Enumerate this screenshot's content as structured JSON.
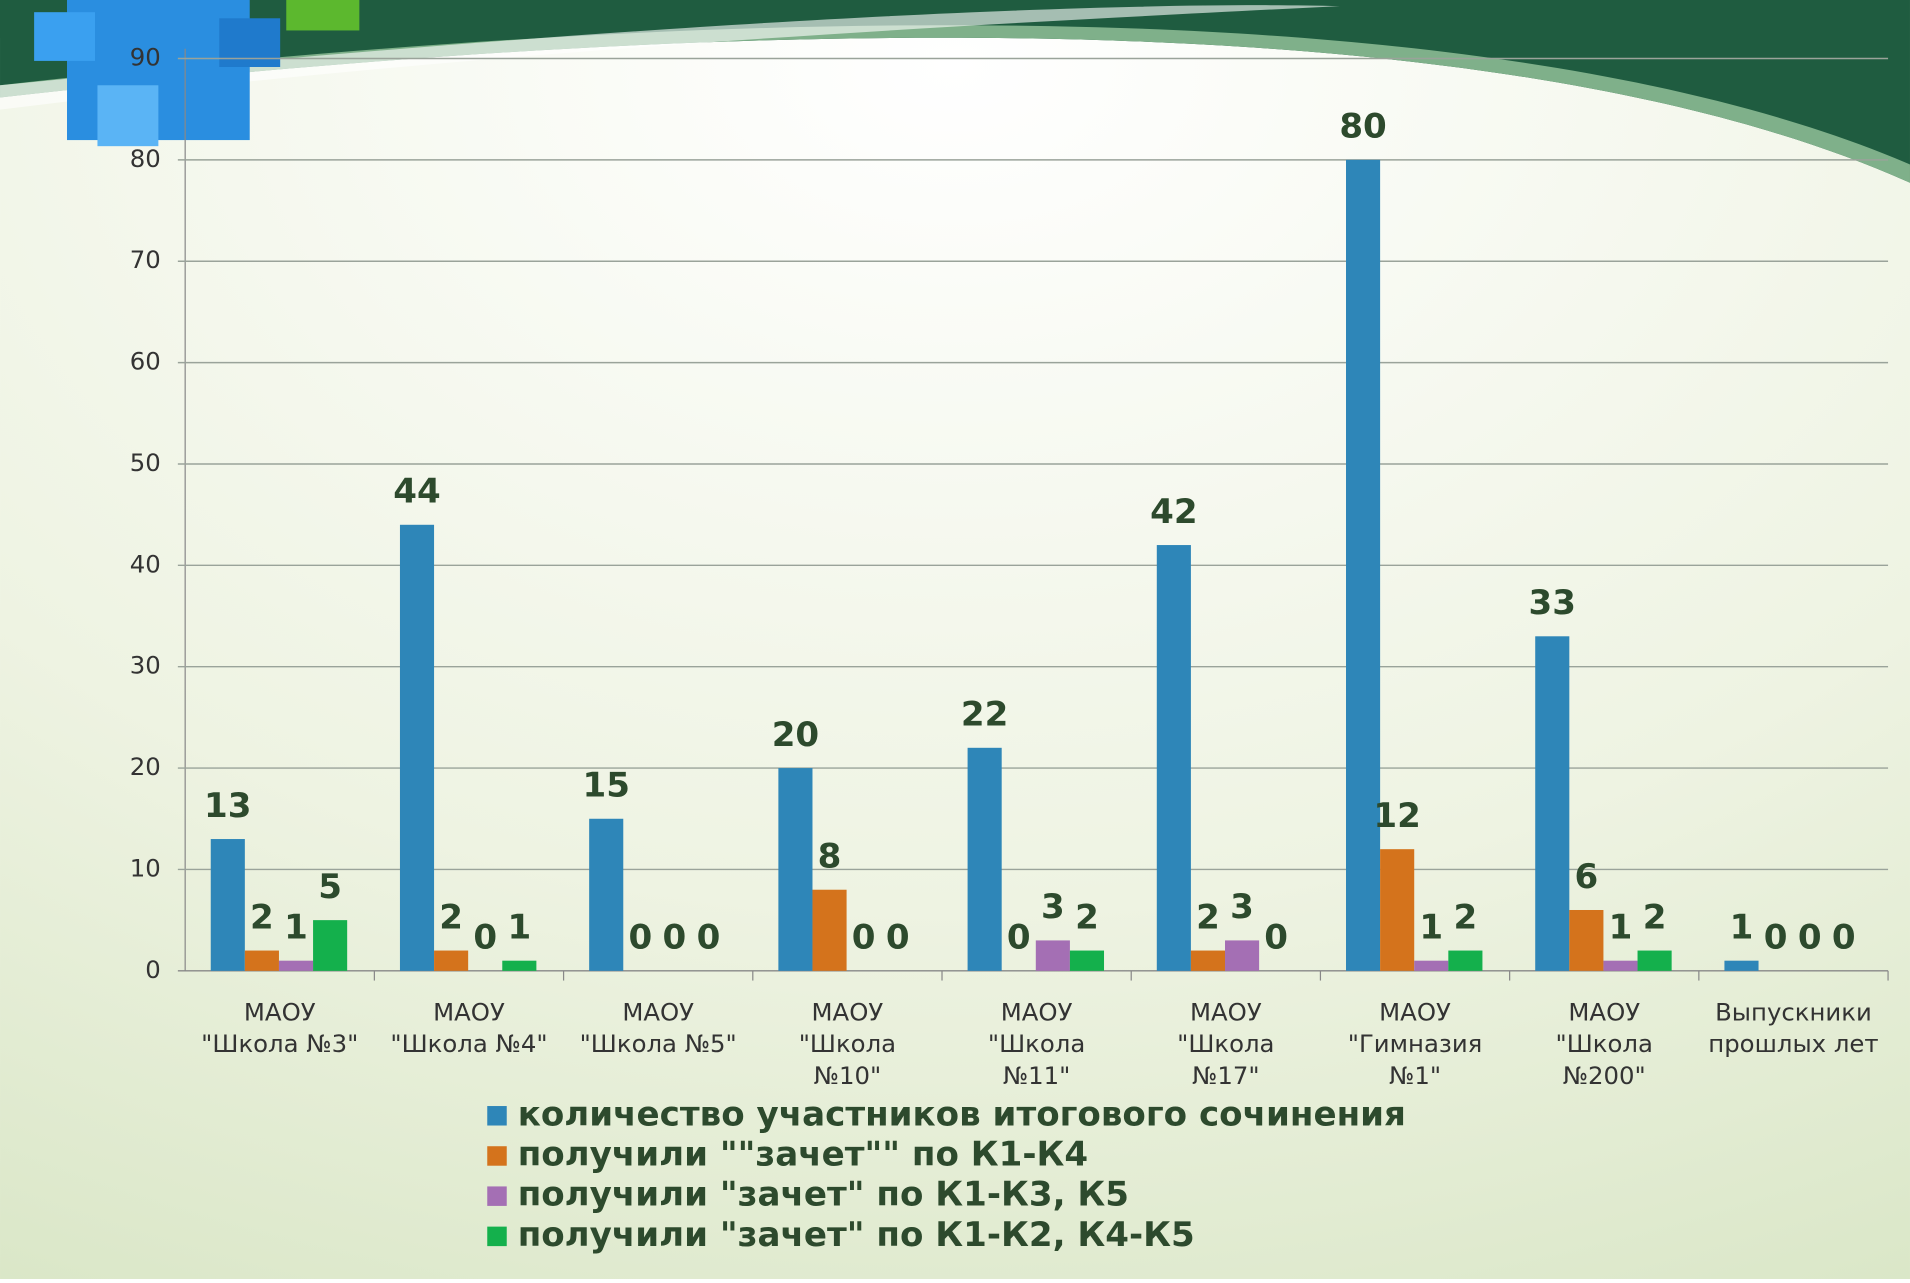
{
  "chart_data": {
    "type": "bar",
    "categories": [
      "МАОУ\n\"Школа №3\"",
      "МАОУ\n\"Школа №4\"",
      "МАОУ\n\"Школа №5\"",
      "МАОУ\n\"Школа\n№10\"",
      "МАОУ\n\"Школа\n№11\"",
      "МАОУ\n\"Школа\n№17\"",
      "МАОУ\n\"Гимназия\n№1\"",
      "МАОУ\n\"Школа\n№200\"",
      "Выпускники\nпрошлых лет"
    ],
    "series": [
      {
        "name": "количество участников итогового сочинения",
        "color": "#2e86b8",
        "values": [
          13,
          44,
          15,
          20,
          22,
          42,
          80,
          33,
          1
        ]
      },
      {
        "name": "получили \"\"зачет\"\"  по К1-К4",
        "color": "#d4731c",
        "values": [
          2,
          2,
          0,
          8,
          0,
          2,
          12,
          6,
          0
        ]
      },
      {
        "name": "получили \"зачет\" по К1-К3, К5",
        "color": "#a46fb4",
        "values": [
          1,
          0,
          0,
          0,
          3,
          3,
          1,
          1,
          0
        ]
      },
      {
        "name": "получили \"зачет\" по К1-К2, К4-К5",
        "color": "#14b04c",
        "values": [
          5,
          1,
          0,
          0,
          2,
          0,
          2,
          2,
          0
        ]
      }
    ],
    "ylim": [
      0,
      90
    ],
    "yticks": [
      0,
      10,
      20,
      30,
      40,
      50,
      60,
      70,
      80,
      90
    ],
    "grid": true,
    "legend": "bottom"
  }
}
